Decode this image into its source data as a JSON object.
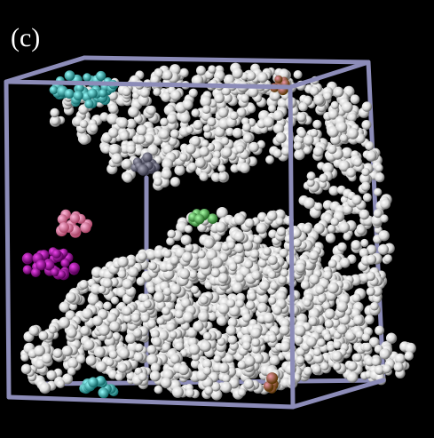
{
  "label": "(c)"
}
